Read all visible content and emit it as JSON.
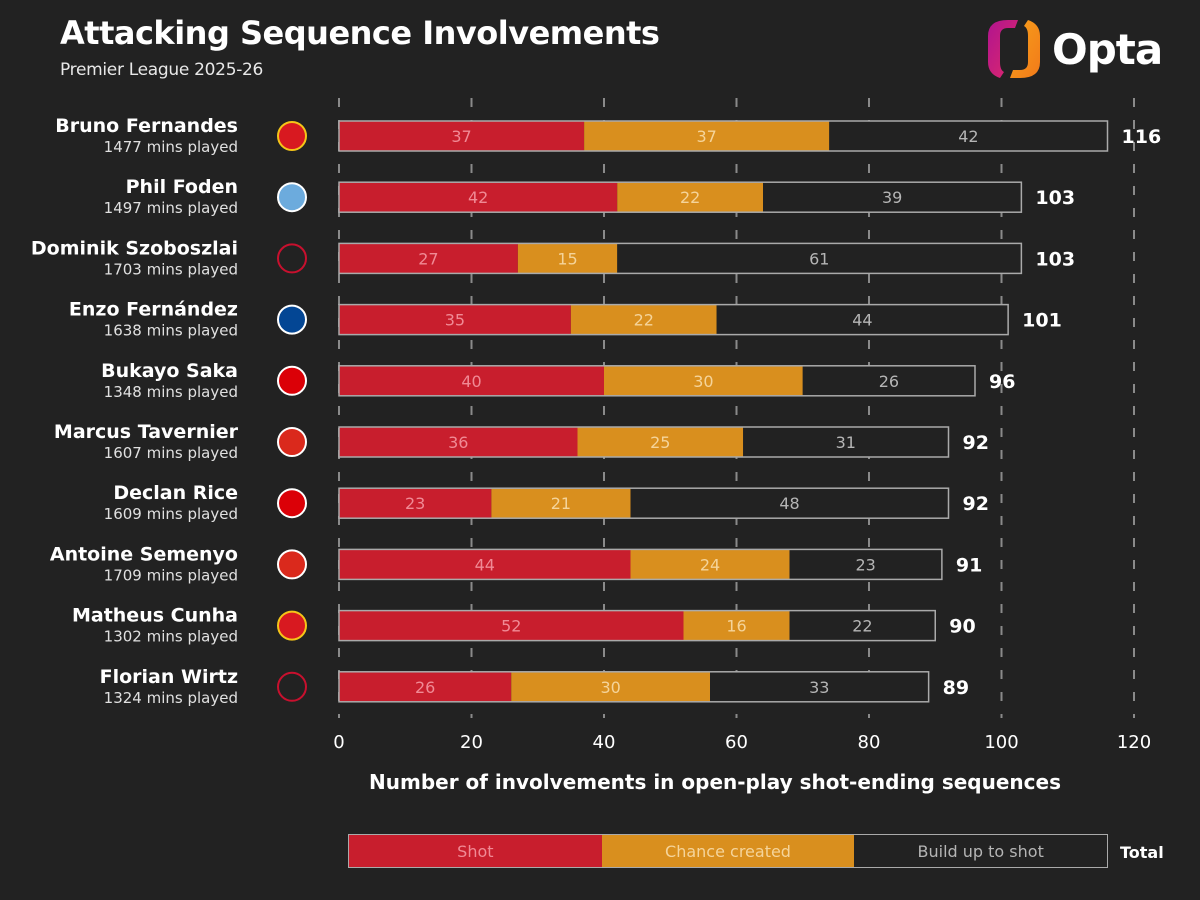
{
  "header": {
    "title": "Attacking Sequence Involvements",
    "subtitle": "Premier League 2025-26",
    "logo_text": "Opta"
  },
  "colors": {
    "shot": "#c81e2d",
    "chance": "#d98f1e",
    "build": "#222222",
    "shot_label": "#f08a95",
    "chance_label": "#f5d49a",
    "build_label": "#b5b5b5"
  },
  "chart_data": {
    "type": "bar",
    "orientation": "horizontal",
    "stacked": true,
    "title": "Attacking Sequence Involvements",
    "subtitle": "Premier League 2025-26",
    "xlabel": "Number of involvements in open-play shot-ending sequences",
    "ylabel": "",
    "xlim": [
      0,
      120
    ],
    "xticks": [
      0,
      20,
      40,
      60,
      80,
      100,
      120
    ],
    "grid": "vertical dashed",
    "legend_position": "bottom",
    "legend": [
      "Shot",
      "Chance created",
      "Build up to shot"
    ],
    "legend_total_label": "Total",
    "categories": [
      "Bruno Fernandes",
      "Phil Foden",
      "Dominik Szoboszlai",
      "Enzo Fernández",
      "Bukayo Saka",
      "Marcus Tavernier",
      "Declan Rice",
      "Antoine Semenyo",
      "Matheus Cunha",
      "Florian Wirtz"
    ],
    "minutes": [
      "1477 mins played",
      "1497 mins played",
      "1703 mins played",
      "1638 mins played",
      "1348 mins played",
      "1607 mins played",
      "1609 mins played",
      "1709 mins played",
      "1302 mins played",
      "1324 mins played"
    ],
    "clubs": [
      "manchester-united",
      "manchester-city",
      "liverpool",
      "chelsea",
      "arsenal",
      "bournemouth",
      "arsenal",
      "bournemouth",
      "manchester-united",
      "liverpool"
    ],
    "series": [
      {
        "name": "Shot",
        "values": [
          37,
          42,
          27,
          35,
          40,
          36,
          23,
          44,
          52,
          26
        ]
      },
      {
        "name": "Chance created",
        "values": [
          37,
          22,
          15,
          22,
          30,
          25,
          21,
          24,
          16,
          30
        ]
      },
      {
        "name": "Build up to shot",
        "values": [
          42,
          39,
          61,
          44,
          26,
          31,
          48,
          23,
          22,
          33
        ]
      }
    ],
    "totals": [
      116,
      103,
      103,
      101,
      96,
      92,
      92,
      91,
      90,
      89
    ]
  }
}
